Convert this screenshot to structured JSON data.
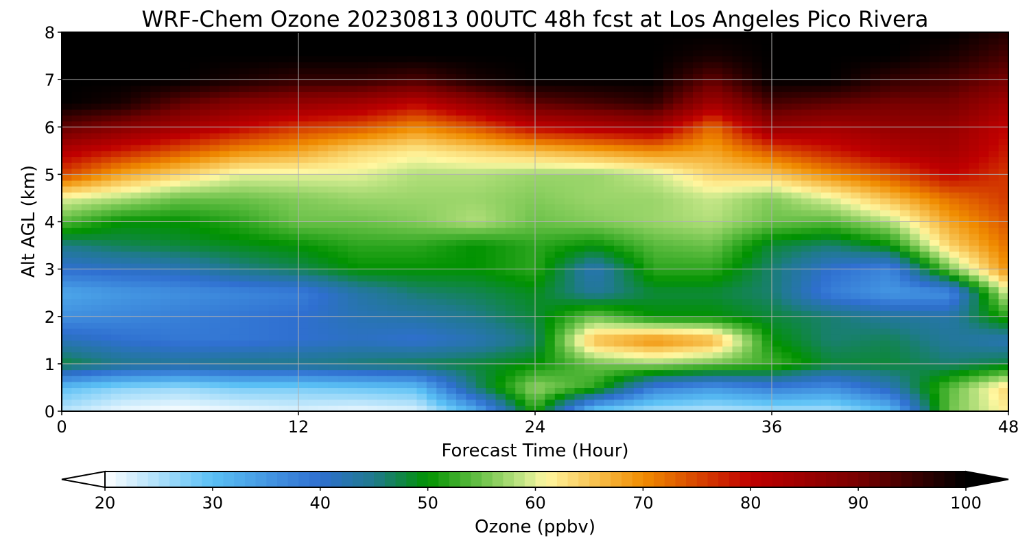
{
  "chart_data": {
    "type": "heatmap",
    "title": "WRF-Chem Ozone  20230813 00UTC 48h fcst at Los Angeles Pico Rivera",
    "xlabel": "Forecast Time (Hour)",
    "ylabel": "Alt AGL (km)",
    "xlim": [
      0,
      48
    ],
    "ylim": [
      0,
      8
    ],
    "xticks": [
      "0",
      "12",
      "24",
      "36",
      "48"
    ],
    "yticks": [
      "0",
      "1",
      "2",
      "3",
      "4",
      "5",
      "6",
      "7",
      "8"
    ],
    "grid": true,
    "x": [
      0,
      3,
      6,
      9,
      12,
      15,
      18,
      21,
      24,
      27,
      30,
      33,
      36,
      39,
      42,
      45,
      48
    ],
    "y": [
      0,
      0.5,
      1,
      1.5,
      2,
      2.5,
      3,
      3.5,
      4,
      4.5,
      5,
      5.5,
      6,
      6.5,
      7,
      7.5,
      8
    ],
    "z": [
      [
        24,
        21,
        20,
        21,
        22,
        21,
        22,
        32,
        52,
        28,
        25,
        24,
        25,
        25,
        30,
        55,
        62
      ],
      [
        30,
        27,
        26,
        28,
        28,
        29,
        30,
        46,
        57,
        52,
        38,
        35,
        38,
        36,
        42,
        54,
        64
      ],
      [
        48,
        45,
        44,
        45,
        45,
        46,
        47,
        48,
        50,
        55,
        57,
        55,
        53,
        48,
        48,
        46,
        48
      ],
      [
        42,
        40,
        39,
        39,
        40,
        41,
        40,
        42,
        46,
        66,
        70,
        67,
        50,
        46,
        47,
        44,
        42
      ],
      [
        36,
        37,
        38,
        39,
        40,
        42,
        43,
        45,
        48,
        55,
        50,
        50,
        48,
        46,
        44,
        43,
        52
      ],
      [
        33,
        35,
        36,
        37,
        38,
        43,
        46,
        47,
        49,
        44,
        48,
        48,
        46,
        38,
        35,
        36,
        60
      ],
      [
        40,
        41,
        42,
        45,
        47,
        50,
        50,
        50,
        52,
        42,
        52,
        52,
        46,
        40,
        37,
        55,
        70
      ],
      [
        45,
        47,
        48,
        49,
        50,
        52,
        52,
        50,
        52,
        50,
        54,
        55,
        48,
        46,
        50,
        64,
        72
      ],
      [
        54,
        50,
        50,
        52,
        55,
        55,
        56,
        58,
        55,
        56,
        57,
        58,
        55,
        54,
        58,
        68,
        74
      ],
      [
        60,
        58,
        55,
        55,
        56,
        57,
        57,
        57,
        56,
        57,
        57,
        59,
        56,
        60,
        66,
        72,
        76
      ],
      [
        75,
        68,
        64,
        60,
        60,
        60,
        58,
        58,
        57,
        57,
        59,
        64,
        65,
        70,
        74,
        80,
        76
      ],
      [
        82,
        78,
        74,
        70,
        68,
        64,
        62,
        64,
        66,
        68,
        70,
        68,
        74,
        78,
        82,
        84,
        78
      ],
      [
        92,
        88,
        84,
        80,
        76,
        74,
        70,
        74,
        80,
        82,
        84,
        72,
        86,
        84,
        86,
        86,
        80
      ],
      [
        100,
        98,
        92,
        88,
        86,
        84,
        80,
        86,
        92,
        94,
        96,
        84,
        94,
        92,
        90,
        90,
        84
      ],
      [
        100,
        100,
        100,
        98,
        96,
        96,
        94,
        98,
        100,
        100,
        100,
        92,
        100,
        100,
        96,
        94,
        90
      ],
      [
        100,
        100,
        100,
        100,
        100,
        100,
        100,
        100,
        100,
        100,
        100,
        98,
        100,
        100,
        100,
        98,
        94
      ],
      [
        100,
        100,
        100,
        100,
        100,
        100,
        100,
        100,
        100,
        100,
        100,
        100,
        100,
        100,
        100,
        100,
        97
      ]
    ],
    "colorbar": {
      "label": "Ozone  (ppbv)",
      "min": 20,
      "max": 100,
      "extend": "both",
      "ticks": [
        "20",
        "30",
        "40",
        "50",
        "60",
        "70",
        "80",
        "90",
        "100"
      ],
      "stops": [
        {
          "v": 20,
          "c": "#ffffff"
        },
        {
          "v": 30,
          "c": "#5ac0f5"
        },
        {
          "v": 40,
          "c": "#2f6fd0"
        },
        {
          "v": 45,
          "c": "#1f7a8c"
        },
        {
          "v": 50,
          "c": "#019201"
        },
        {
          "v": 55,
          "c": "#6cc24a"
        },
        {
          "v": 59,
          "c": "#c9e88a"
        },
        {
          "v": 61,
          "c": "#fff7a0"
        },
        {
          "v": 70,
          "c": "#f08c00"
        },
        {
          "v": 80,
          "c": "#c00000"
        },
        {
          "v": 90,
          "c": "#780000"
        },
        {
          "v": 100,
          "c": "#000000"
        }
      ]
    }
  }
}
